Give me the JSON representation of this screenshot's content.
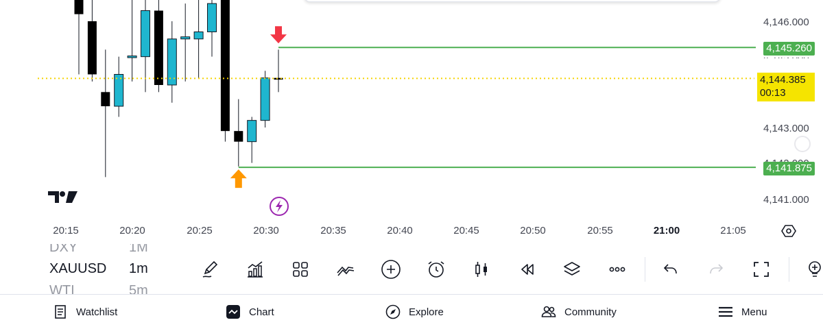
{
  "chart": {
    "price_ticks": [
      "4,146.000",
      "4,143.000",
      "4,141.000"
    ],
    "partial_ticks": [
      "4,145.000",
      "4,142.000"
    ],
    "time_ticks": [
      "20:15",
      "20:20",
      "20:25",
      "20:30",
      "20:35",
      "20:40",
      "20:45",
      "20:50",
      "20:55",
      "21:00",
      "21:05"
    ],
    "bold_time_tick": "21:00",
    "upper_level": "4,145.260",
    "lower_level": "4,141.875",
    "current_price": "4,144.385",
    "countdown": "00:13",
    "colors": {
      "up_candle": "#1fb6cf",
      "down_candle": "#000000",
      "level_line": "#4caf50",
      "current_price_line": "#f5d300",
      "sell_arrow": "#f23645",
      "buy_arrow": "#ff9800",
      "lightning": "#9c27b0"
    },
    "candles": [
      {
        "o": 4146.7,
        "h": 4147.5,
        "l": 4144.5,
        "c": 4146.2
      },
      {
        "o": 4146.0,
        "h": 4147.5,
        "l": 4144.3,
        "c": 4144.5
      },
      {
        "o": 4144.0,
        "h": 4145.2,
        "l": 4141.6,
        "c": 4143.6
      },
      {
        "o": 4143.6,
        "h": 4145.0,
        "l": 4143.3,
        "c": 4144.5
      },
      {
        "o": 4144.98,
        "h": 4146.8,
        "l": 4144.3,
        "c": 4145.02
      },
      {
        "o": 4145.0,
        "h": 4146.7,
        "l": 4144.0,
        "c": 4146.3
      },
      {
        "o": 4146.3,
        "h": 4146.7,
        "l": 4144.0,
        "c": 4144.2
      },
      {
        "o": 4144.2,
        "h": 4146.0,
        "l": 4143.7,
        "c": 4145.5
      },
      {
        "o": 4145.5,
        "h": 4146.5,
        "l": 4144.3,
        "c": 4145.56
      },
      {
        "o": 4145.5,
        "h": 4147.0,
        "l": 4144.4,
        "c": 4145.7
      },
      {
        "o": 4145.7,
        "h": 4146.9,
        "l": 4145.0,
        "c": 4146.5
      },
      {
        "o": 4146.6,
        "h": 4147.2,
        "l": 4142.6,
        "c": 4142.9
      },
      {
        "o": 4142.9,
        "h": 4143.8,
        "l": 4141.9,
        "c": 4142.6
      },
      {
        "o": 4142.6,
        "h": 4143.3,
        "l": 4142.0,
        "c": 4143.2
      },
      {
        "o": 4143.2,
        "h": 4144.6,
        "l": 4143.0,
        "c": 4144.4
      },
      {
        "o": 4144.4,
        "h": 4145.2,
        "l": 4144.0,
        "c": 4144.36
      }
    ],
    "sell_arrow_candle": 15,
    "buy_arrow_candle": 12,
    "watermark": "TradingView logo"
  },
  "symbols": {
    "prev": {
      "symbol": "DXY",
      "timeframe": "1M"
    },
    "current": {
      "symbol": "XAUUSD",
      "timeframe": "1m"
    },
    "next": {
      "symbol": "WTI",
      "timeframe": "5m"
    }
  },
  "toolbar": {
    "items": [
      "pencil-icon",
      "indicators-icon",
      "grid-icon",
      "patterns-icon",
      "add-icon",
      "alarm-icon",
      "candle-icon",
      "replay-icon",
      "layers-icon",
      "more-icon",
      "undo-icon",
      "redo-icon",
      "fullscreen-icon",
      "idea-icon"
    ]
  },
  "nav": {
    "watchlist": "Watchlist",
    "chart": "Chart",
    "explore": "Explore",
    "community": "Community",
    "menu": "Menu"
  }
}
